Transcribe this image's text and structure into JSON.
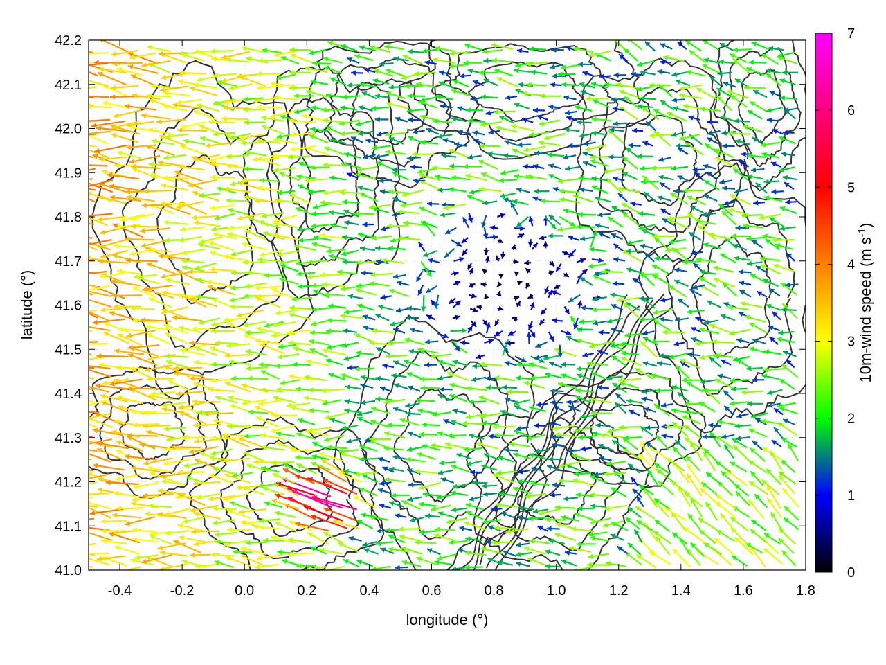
{
  "chart_data": {
    "type": "vector-field",
    "xlabel": "longitude (°)",
    "ylabel": "latitude (°)",
    "xlim": [
      -0.5,
      1.8
    ],
    "ylim": [
      41.0,
      42.2
    ],
    "x_ticks": [
      "-0.4",
      "-0.2",
      "0.0",
      "0.2",
      "0.4",
      "0.6",
      "0.8",
      "1.0",
      "1.2",
      "1.4",
      "1.6",
      "1.8"
    ],
    "x_tick_values": [
      -0.4,
      -0.2,
      0.0,
      0.2,
      0.4,
      0.6,
      0.8,
      1.0,
      1.2,
      1.4,
      1.6,
      1.8
    ],
    "y_ticks": [
      "41.0",
      "41.1",
      "41.2",
      "41.3",
      "41.4",
      "41.5",
      "41.6",
      "41.7",
      "41.8",
      "41.9",
      "42.0",
      "42.1",
      "42.2"
    ],
    "y_tick_values": [
      41.0,
      41.1,
      41.2,
      41.3,
      41.4,
      41.5,
      41.6,
      41.7,
      41.8,
      41.9,
      42.0,
      42.1,
      42.2
    ],
    "grid": true,
    "colorbar": {
      "label": "10m-wind speed (m s-1)",
      "label_main": "10m-wind speed (m s",
      "label_sup": "-1",
      "label_end": ")",
      "range": [
        0,
        7
      ],
      "ticks": [
        "0",
        "1",
        "2",
        "3",
        "4",
        "5",
        "6",
        "7"
      ],
      "tick_values": [
        0,
        1,
        2,
        3,
        4,
        5,
        6,
        7
      ],
      "palette": [
        "#000000",
        "#0000ff",
        "#00ff00",
        "#ffff00",
        "#ff8000",
        "#ff0000",
        "#ff00ff"
      ]
    },
    "calm_zone": {
      "center": [
        0.85,
        41.65
      ],
      "radius_deg": [
        0.3,
        0.18
      ]
    },
    "strong_zone": {
      "center": [
        0.3,
        41.15
      ],
      "radius_deg": [
        0.15,
        0.08
      ]
    }
  }
}
